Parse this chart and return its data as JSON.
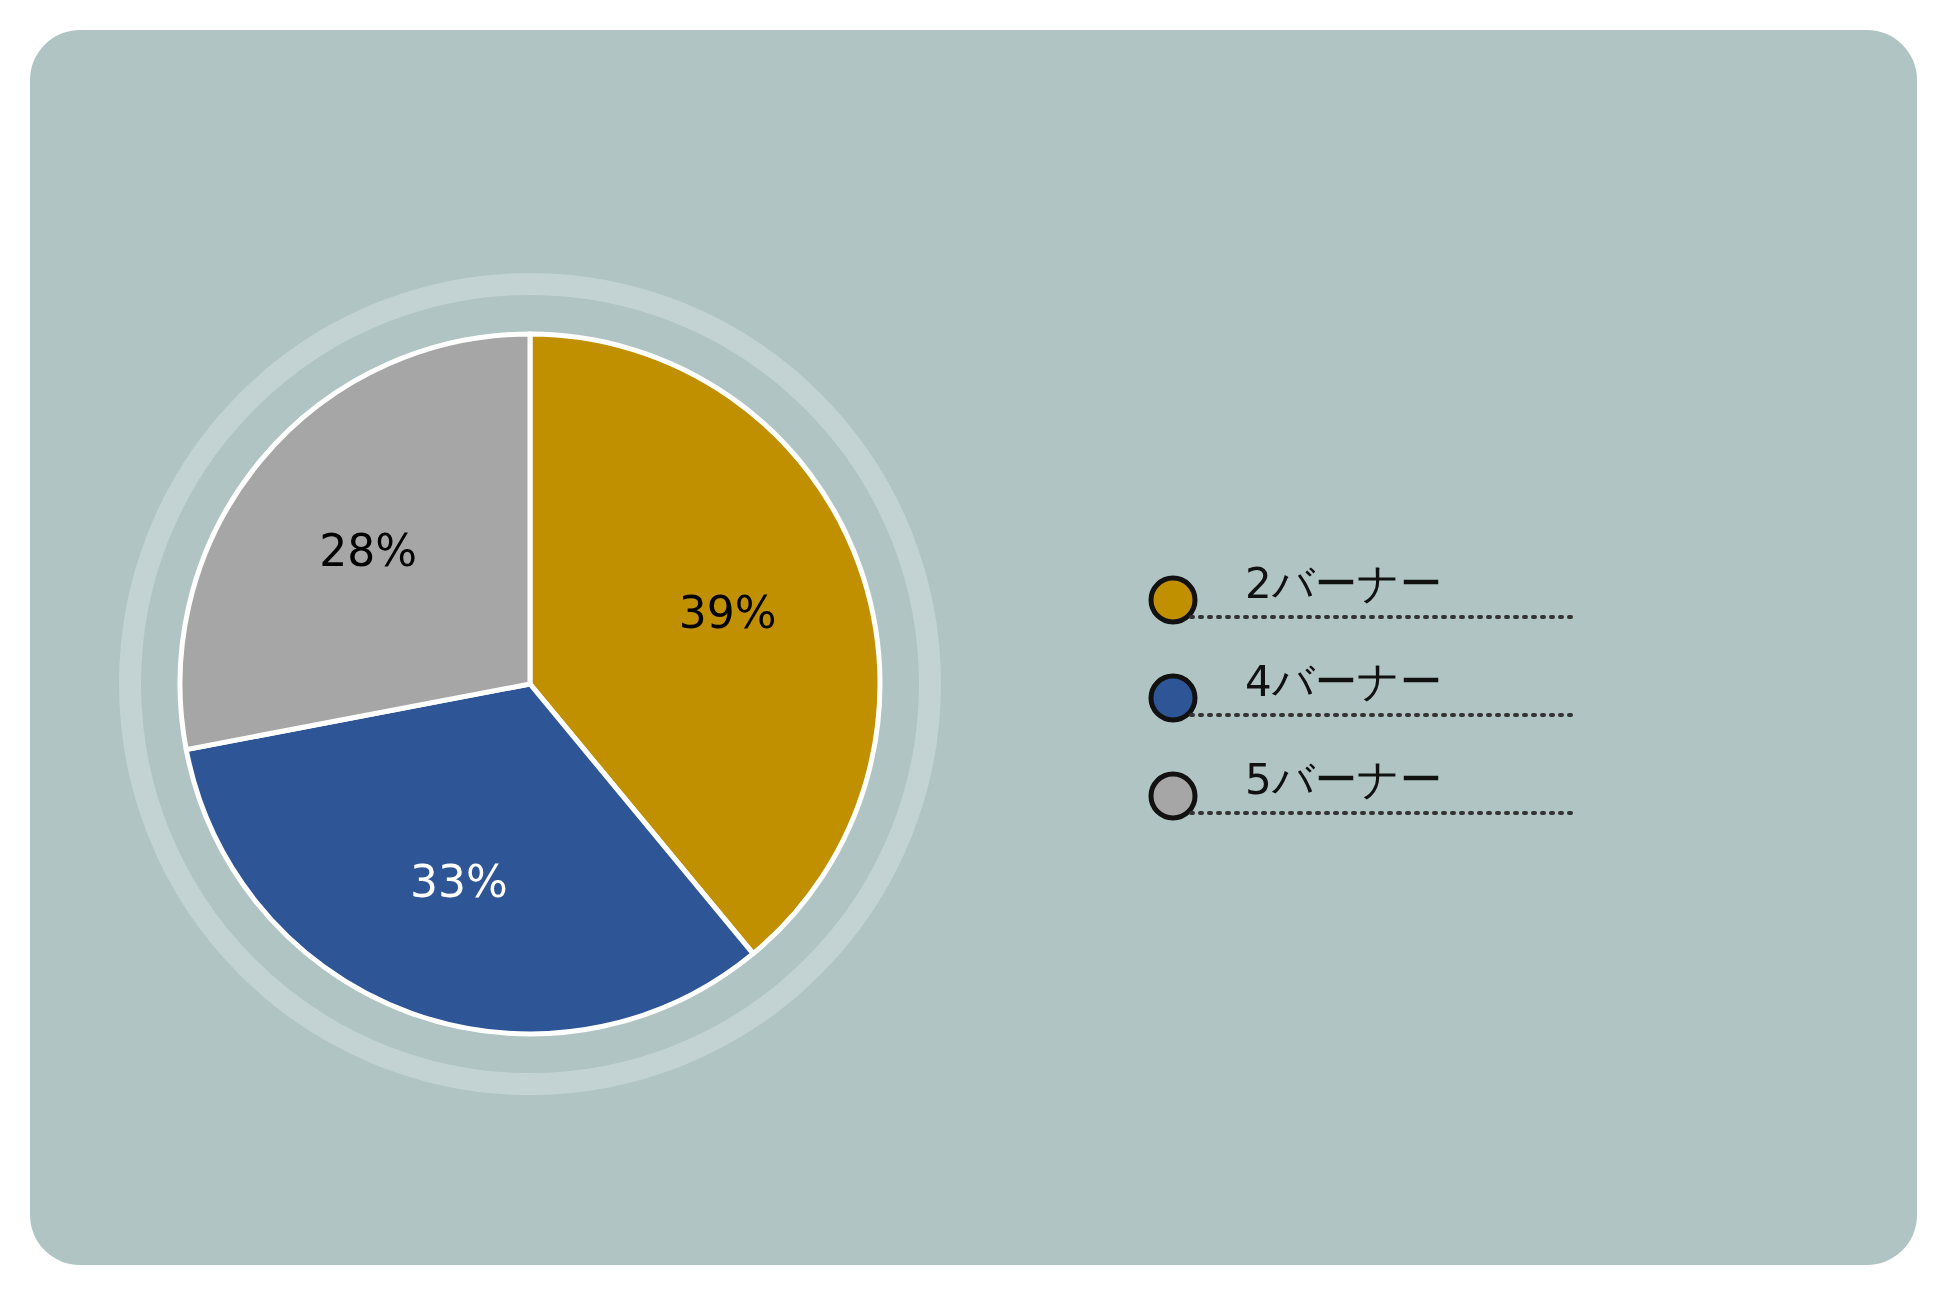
{
  "chart_data": {
    "type": "pie",
    "categories": [
      "2バーナー",
      "4バーナー",
      "5バーナー"
    ],
    "values": [
      39,
      33,
      28
    ],
    "colors": [
      "#c09000",
      "#2e5596",
      "#a6a6a6"
    ],
    "value_labels": [
      "39%",
      "33%",
      "28%"
    ],
    "legend": "right"
  }
}
